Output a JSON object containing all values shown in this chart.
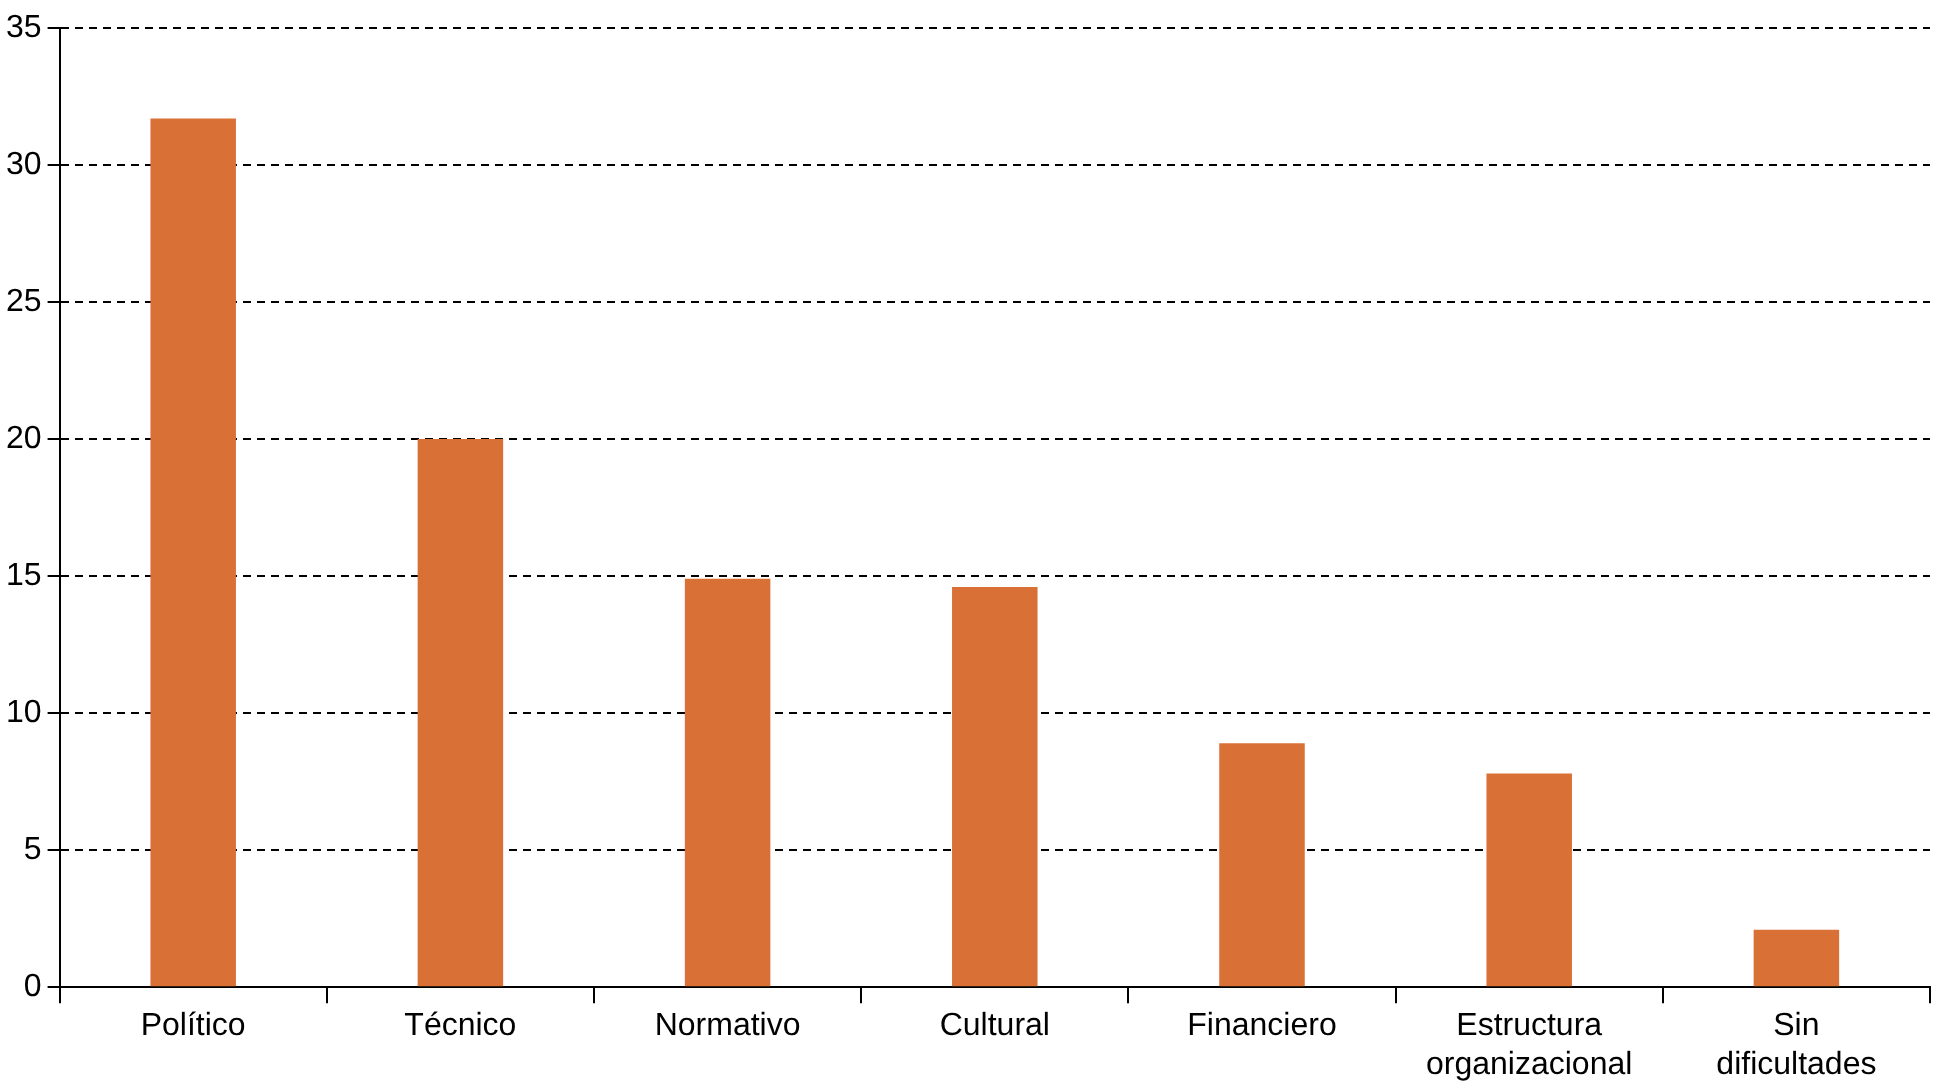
{
  "chart_data": {
    "type": "bar",
    "categories": [
      "Político",
      "Técnico",
      "Normativo",
      "Cultural",
      "Financiero",
      "Estructura organizacional",
      "Sin dificultades"
    ],
    "values": [
      31.7,
      20.0,
      14.9,
      14.6,
      8.9,
      7.8,
      2.1
    ],
    "color": "#d97035",
    "ylim": [
      0,
      35
    ],
    "yticks": [
      0,
      5,
      10,
      15,
      20,
      25,
      30,
      35
    ],
    "grid": "y",
    "legend": false
  }
}
